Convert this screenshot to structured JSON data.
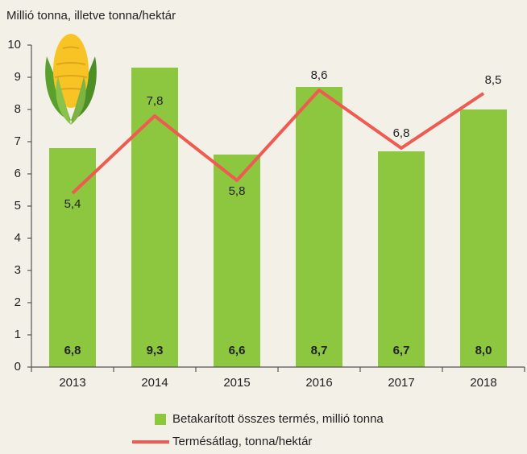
{
  "chart_data": {
    "type": "bar",
    "title": "Millió tonna, illetve tonna/hektár",
    "categories": [
      "2013",
      "2014",
      "2015",
      "2016",
      "2017",
      "2018"
    ],
    "series": [
      {
        "name": "Betakarított összes termés, millió tonna",
        "type": "bar",
        "color": "#8dc63f",
        "values": [
          6.8,
          9.3,
          6.6,
          8.7,
          6.7,
          8.0
        ],
        "value_labels": [
          "6,8",
          "9,3",
          "6,6",
          "8,7",
          "6,7",
          "8,0"
        ]
      },
      {
        "name": "Termésátlag, tonna/hektár",
        "type": "line",
        "color": "#ef5b50",
        "values": [
          5.4,
          7.8,
          5.8,
          8.6,
          6.8,
          8.5
        ],
        "value_labels": [
          "5,4",
          "7,8",
          "5,8",
          "8,6",
          "6,8",
          "8,5"
        ]
      }
    ],
    "ylim": [
      0,
      10
    ],
    "yticks": [
      0,
      1,
      2,
      3,
      4,
      5,
      6,
      7,
      8,
      9,
      10
    ],
    "grid": false
  }
}
